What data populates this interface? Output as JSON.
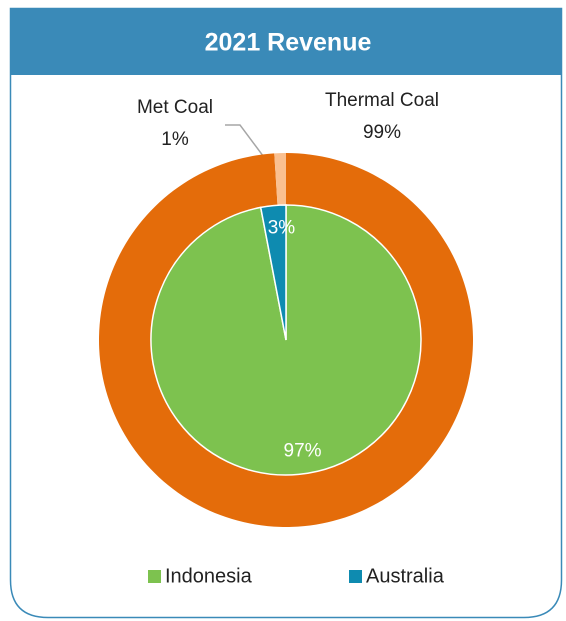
{
  "chart_data": {
    "type": "nested-pie",
    "title": "2021 Revenue",
    "rings": [
      {
        "categories": [
          "Thermal Coal",
          "Met Coal"
        ],
        "values": [
          99,
          1
        ],
        "value_labels": [
          "99%",
          "1%"
        ],
        "colors": [
          "#e46c0a",
          "#fac090"
        ]
      },
      {
        "categories": [
          "Indonesia",
          "Australia"
        ],
        "values": [
          97,
          3
        ],
        "value_labels": [
          "97%",
          "3%"
        ],
        "colors": [
          "#7dc24f",
          "#0e8bb0"
        ]
      }
    ],
    "legend": "bottom"
  }
}
